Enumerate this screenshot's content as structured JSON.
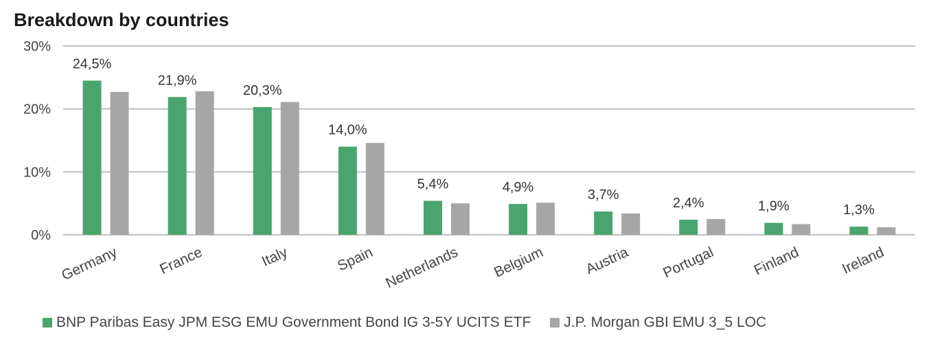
{
  "chart_data": {
    "type": "bar",
    "title": "Breakdown by countries",
    "categories": [
      "Germany",
      "France",
      "Italy",
      "Spain",
      "Netherlands",
      "Belgium",
      "Austria",
      "Portugal",
      "Finland",
      "Ireland"
    ],
    "series": [
      {
        "name": "BNP Paribas Easy JPM ESG EMU Government Bond IG 3-5Y UCITS ETF",
        "color": "#4aa46e",
        "values": [
          24.5,
          21.9,
          20.3,
          14.0,
          5.4,
          4.9,
          3.7,
          2.4,
          1.9,
          1.3
        ],
        "labels": [
          "24,5%",
          "21,9%",
          "20,3%",
          "14,0%",
          "5,4%",
          "4,9%",
          "3,7%",
          "2,4%",
          "1,9%",
          "1,3%"
        ]
      },
      {
        "name": "J.P. Morgan GBI EMU 3_5 LOC",
        "color": "#a6a6a6",
        "values": [
          22.7,
          22.8,
          21.1,
          14.6,
          5.0,
          5.1,
          3.4,
          2.5,
          1.7,
          1.2
        ]
      }
    ],
    "yticks": [
      0,
      10,
      20,
      30
    ],
    "ytick_labels": [
      "0%",
      "10%",
      "20%",
      "30%"
    ],
    "ylim": [
      0,
      30
    ],
    "grid": true,
    "gridline_color": "#c8c8c8",
    "legend": "bottom"
  }
}
